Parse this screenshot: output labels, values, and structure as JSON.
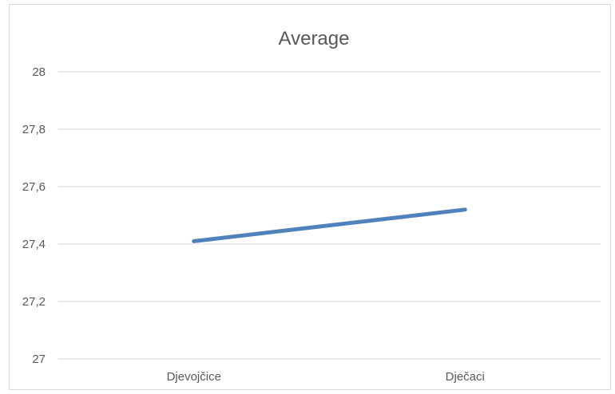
{
  "chart_data": {
    "type": "line",
    "title": "Average",
    "xlabel": "",
    "ylabel": "",
    "categories": [
      "Djevojčice",
      "Dječaci"
    ],
    "series": [
      {
        "values": [
          27.41,
          27.52
        ],
        "color": "#4f81bd"
      }
    ],
    "ylim": [
      27,
      28
    ],
    "yticks": [
      27,
      27.2,
      27.4,
      27.6,
      27.8,
      28
    ],
    "ytick_labels": [
      "27",
      "27,2",
      "27,4",
      "27,6",
      "27,8",
      "28"
    ],
    "grid": true,
    "legend": "none"
  }
}
